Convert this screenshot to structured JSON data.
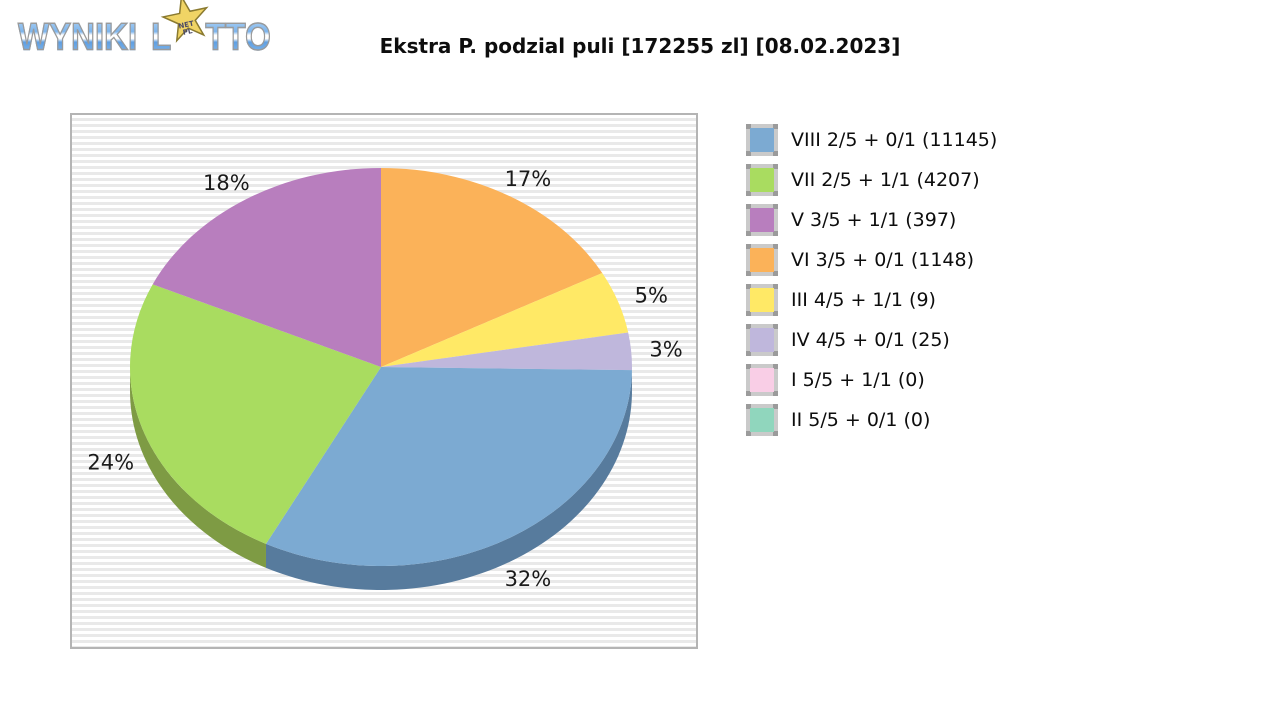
{
  "logo": {
    "word1": "WYNIKI",
    "word2_pre": "L",
    "word2_post": "TTO",
    "star_line1": "NET",
    "star_line2": "PL"
  },
  "title": "Ekstra P. podzial puli [172255 zl] [08.02.2023]",
  "chart_data": {
    "type": "pie",
    "style": "3d-pie",
    "title": "Ekstra P. podzial puli [172255 zl] [08.02.2023]",
    "pool": "172255 zl",
    "date": "08.02.2023",
    "labels_unit": "%",
    "legend_position": "right",
    "slices_clockwise_from_top": [
      {
        "tier": "VI 3/5 + 0/1",
        "winners": 1148,
        "percent": 17,
        "color": "#fbb259",
        "side_color": "#b07c3e"
      },
      {
        "tier": "III 4/5 + 1/1",
        "winners": 9,
        "percent": 5,
        "color": "#ffe966",
        "side_color": "#b3a347"
      },
      {
        "tier": "IV 4/5 + 0/1",
        "winners": 25,
        "percent": 3,
        "color": "#bfb7dc",
        "side_color": "#86809a"
      },
      {
        "tier": "VIII 2/5 + 0/1",
        "winners": 11145,
        "percent": 32,
        "color": "#7caad2",
        "side_color": "#577b9d"
      },
      {
        "tier": "VII 2/5 + 1/1",
        "winners": 4207,
        "percent": 24,
        "color": "#a9dc60",
        "side_color": "#7e9b44"
      },
      {
        "tier": "V 3/5 + 1/1",
        "winners": 397,
        "percent": 18,
        "color": "#b87ebe",
        "side_color": "#815985"
      }
    ],
    "legend": [
      {
        "label": "VIII 2/5 + 0/1 (11145)",
        "color": "#7caad2"
      },
      {
        "label": "VII 2/5 + 1/1 (4207)",
        "color": "#a9dc60"
      },
      {
        "label": "V 3/5 + 1/1 (397)",
        "color": "#b87ebe"
      },
      {
        "label": "VI 3/5 + 0/1 (1148)",
        "color": "#fbb259"
      },
      {
        "label": "III 4/5 + 1/1 (9)",
        "color": "#ffe966"
      },
      {
        "label": "IV 4/5 + 0/1 (25)",
        "color": "#bfb7dc"
      },
      {
        "label": "I 5/5 + 1/1 (0)",
        "color": "#f9cee6"
      },
      {
        "label": "II 5/5 + 0/1 (0)",
        "color": "#90d6bd"
      }
    ]
  }
}
